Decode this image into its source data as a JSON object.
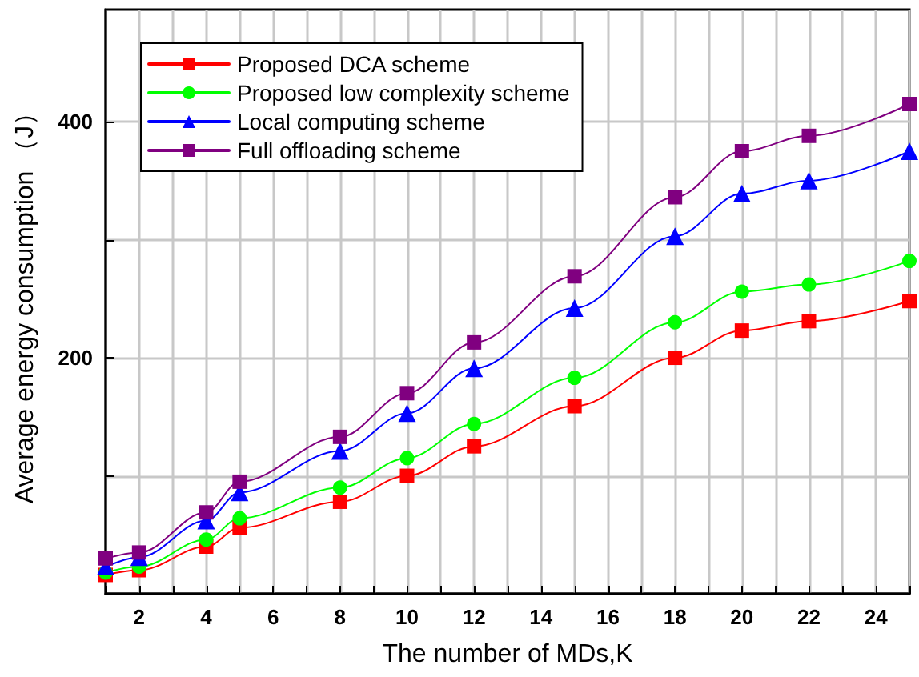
{
  "chart_data": {
    "type": "line",
    "xlabel": "The number of MDs,K",
    "ylabel": "Average energy consumption （J）",
    "x": [
      1,
      2,
      4,
      5,
      8,
      10,
      12,
      15,
      18,
      20,
      22,
      25
    ],
    "series": [
      {
        "name": "Proposed DCA scheme",
        "color": "#ff0000",
        "marker": "square",
        "values": [
          16,
          20,
          40,
          56,
          78,
          100,
          125,
          159,
          200,
          223,
          231,
          248
        ]
      },
      {
        "name": "Proposed low complexity scheme",
        "color": "#00ff00",
        "marker": "circle",
        "values": [
          18,
          23,
          46,
          64,
          90,
          115,
          144,
          183,
          230,
          256,
          262,
          282
        ]
      },
      {
        "name": "Local computing scheme",
        "color": "#0000ff",
        "marker": "triangle",
        "values": [
          23,
          31,
          62,
          86,
          121,
          153,
          191,
          242,
          303,
          339,
          350,
          375
        ]
      },
      {
        "name": "Full offloading scheme",
        "color": "#800080",
        "marker": "square",
        "values": [
          30,
          35,
          69,
          95,
          133,
          170,
          213,
          269,
          336,
          375,
          388,
          415
        ]
      }
    ],
    "xlim": [
      1,
      25
    ],
    "xticks": [
      {
        "value": 1,
        "label": null
      },
      2,
      {
        "value": 3,
        "label": null
      },
      4,
      {
        "value": 5,
        "label": null
      },
      6,
      {
        "value": 7,
        "label": null
      },
      8,
      {
        "value": 9,
        "label": null
      },
      10,
      {
        "value": 11,
        "label": null
      },
      12,
      {
        "value": 13,
        "label": null
      },
      14,
      {
        "value": 15,
        "label": null
      },
      16,
      {
        "value": 17,
        "label": null
      },
      18,
      {
        "value": 19,
        "label": null
      },
      20,
      {
        "value": 21,
        "label": null
      },
      22,
      {
        "value": 23,
        "label": null
      },
      24,
      {
        "value": 25,
        "label": null
      }
    ],
    "ylim": [
      0,
      495
    ],
    "yticks": [
      {
        "value": 100,
        "label": null
      },
      200,
      {
        "value": 300,
        "label": null
      },
      400
    ],
    "grid": true,
    "legend": "top left",
    "line_style": "solid"
  }
}
